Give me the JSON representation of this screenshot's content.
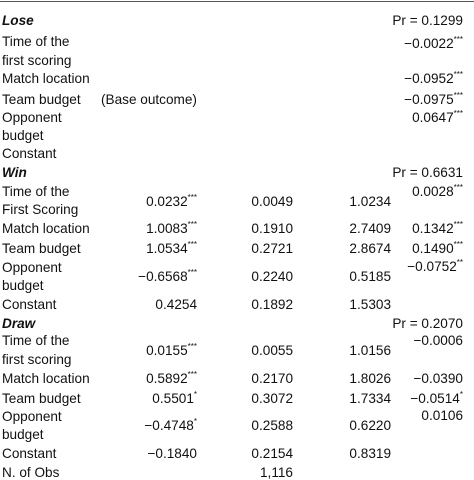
{
  "sections": {
    "lose": {
      "header": "Lose",
      "pr": "Pr = 0.1299",
      "time_l1": "Time of the",
      "time_l2": "first scoring",
      "time_c4": "−0.0022",
      "time_c4_sig": "***",
      "match": "Match location",
      "match_c4": "−0.0952",
      "match_c4_sig": "***",
      "team": "Team budget",
      "team_base": "(Base outcome)",
      "team_c4": "−0.0975",
      "team_c4_sig": "***",
      "opp_l1": "Opponent",
      "opp_l2": "budget",
      "opp_c4": "0.0647",
      "opp_c4_sig": "***",
      "const": "Constant"
    },
    "win": {
      "header": "Win",
      "pr": "Pr = 0.6631",
      "time_l1": "Time of the",
      "time_l2": "First Scoring",
      "time_c1": "0.0232",
      "time_c1_sig": "***",
      "time_c2": "0.0049",
      "time_c3": "1.0234",
      "time_c4": "0.0028",
      "time_c4_sig": "***",
      "match": "Match location",
      "match_c1": "1.0083",
      "match_c1_sig": "***",
      "match_c2": "0.1910",
      "match_c3": "2.7409",
      "match_c4": "0.1342",
      "match_c4_sig": "***",
      "team": "Team budget",
      "team_c1": "1.0534",
      "team_c1_sig": "***",
      "team_c2": "0.2721",
      "team_c3": "2.8674",
      "team_c4": "0.1490",
      "team_c4_sig": "***",
      "opp_l1": "Opponent",
      "opp_l2": "budget",
      "opp_c1": "−0.6568",
      "opp_c1_sig": "***",
      "opp_c2": "0.2240",
      "opp_c3": "0.5185",
      "opp_c4": "−0.0752",
      "opp_c4_sig": "**",
      "const": "Constant",
      "const_c1": "0.4254",
      "const_c2": "0.1892",
      "const_c3": "1.5303"
    },
    "draw": {
      "header": "Draw",
      "pr": "Pr = 0.2070",
      "time_l1": "Time of the",
      "time_l2": "first scoring",
      "time_c1": "0.0155",
      "time_c1_sig": "***",
      "time_c2": "0.0055",
      "time_c3": "1.0156",
      "time_c4": "−0.0006",
      "match": "Match location",
      "match_c1": "0.5892",
      "match_c1_sig": "***",
      "match_c2": "0.2170",
      "match_c3": "1.8026",
      "match_c4": "−0.0390",
      "team": "Team budget",
      "team_c1": "0.5501",
      "team_c1_sig": "*",
      "team_c2": "0.3072",
      "team_c3": "1.7334",
      "team_c4": "−0.0514",
      "team_c4_sig": "*",
      "opp_l1": "Opponent",
      "opp_l2": "budget",
      "opp_c1": "−0.4748",
      "opp_c1_sig": "*",
      "opp_c2": "0.2588",
      "opp_c3": "0.6220",
      "opp_c4": "0.0106",
      "const": "Constant",
      "const_c1": "−0.1840",
      "const_c2": "0.2154",
      "const_c3": "0.8319"
    }
  },
  "footer": {
    "nobs_label": "N. of Obs",
    "nobs_value": "1,116"
  }
}
